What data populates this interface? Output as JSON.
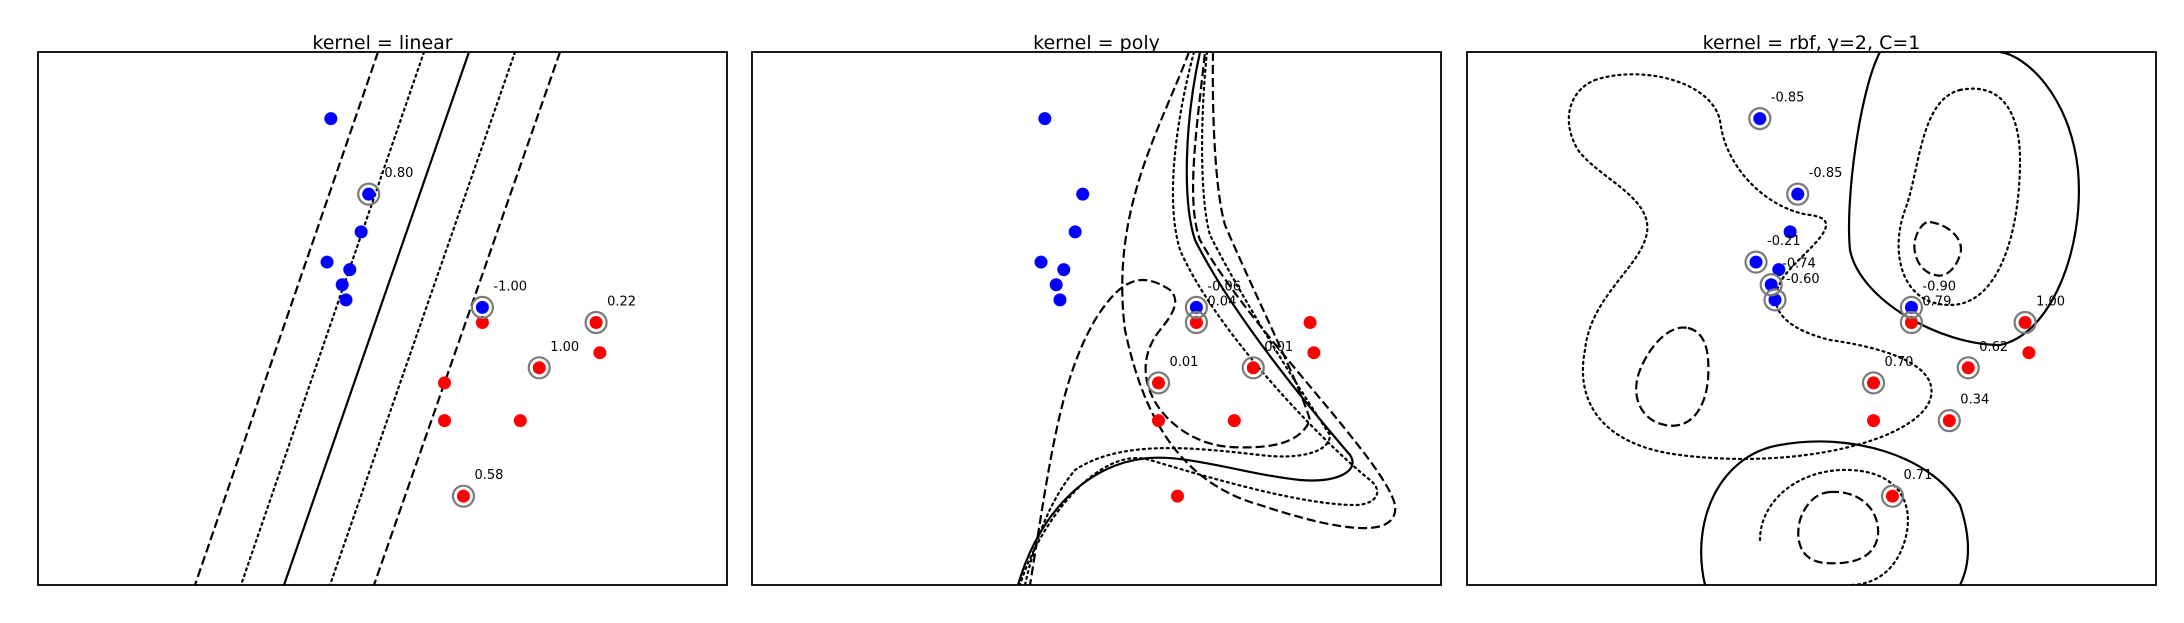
{
  "figure": {
    "colors": {
      "class_neg": "#0000ff",
      "class_pos": "#ff0000",
      "sv_ring": "#7a7a7a"
    }
  },
  "chart_data": [
    {
      "type": "scatter",
      "title": "kernel = linear",
      "xlabel": "",
      "ylabel": "",
      "grid": false,
      "decision_contours": [
        "solid boundary (f=0)",
        "dotted margins",
        "dashed margins"
      ],
      "points": [
        {
          "x": 3.0,
          "y": 0.5,
          "class": "neg"
        },
        {
          "x": 0.0,
          "y": 2.0,
          "class": "neg"
        },
        {
          "x": -0.2,
          "y": 1.5,
          "class": "neg"
        },
        {
          "x": -0.5,
          "y": 1.0,
          "class": "neg"
        },
        {
          "x": -0.6,
          "y": 0.6,
          "class": "neg"
        },
        {
          "x": -0.7,
          "y": 0.8,
          "class": "neg"
        },
        {
          "x": -1.0,
          "y": 3.0,
          "class": "neg"
        },
        {
          "x": -1.1,
          "y": 1.1,
          "class": "neg"
        },
        {
          "x": 6.0,
          "y": 0.3,
          "class": "pos"
        },
        {
          "x": 2.0,
          "y": -0.5,
          "class": "pos"
        },
        {
          "x": 3.0,
          "y": 0.3,
          "class": "pos"
        },
        {
          "x": 4.0,
          "y": -1.0,
          "class": "pos"
        },
        {
          "x": 4.5,
          "y": -0.3,
          "class": "pos"
        },
        {
          "x": 6.1,
          "y": -0.1,
          "class": "pos"
        },
        {
          "x": 2.0,
          "y": -1.0,
          "class": "pos"
        },
        {
          "x": 2.5,
          "y": -2.0,
          "class": "pos"
        }
      ],
      "support_vectors": [
        {
          "point": 1,
          "label": "-0.80"
        },
        {
          "point": 0,
          "label": "-1.00"
        },
        {
          "point": 12,
          "label": "1.00"
        },
        {
          "point": 8,
          "label": "0.22"
        },
        {
          "point": 15,
          "label": "0.58"
        }
      ]
    },
    {
      "type": "scatter",
      "title": "kernel = poly",
      "xlabel": "",
      "ylabel": "",
      "grid": false,
      "decision_contours": [
        "solid boundary (f=0)",
        "dotted margins",
        "dashed margins"
      ],
      "points": [
        {
          "x": 3.0,
          "y": 0.5,
          "class": "neg"
        },
        {
          "x": 0.0,
          "y": 2.0,
          "class": "neg"
        },
        {
          "x": -0.2,
          "y": 1.5,
          "class": "neg"
        },
        {
          "x": -0.5,
          "y": 1.0,
          "class": "neg"
        },
        {
          "x": -0.6,
          "y": 0.6,
          "class": "neg"
        },
        {
          "x": -0.7,
          "y": 0.8,
          "class": "neg"
        },
        {
          "x": -1.0,
          "y": 3.0,
          "class": "neg"
        },
        {
          "x": -1.1,
          "y": 1.1,
          "class": "neg"
        },
        {
          "x": 6.0,
          "y": 0.3,
          "class": "pos"
        },
        {
          "x": 2.0,
          "y": -0.5,
          "class": "pos"
        },
        {
          "x": 3.0,
          "y": 0.3,
          "class": "pos"
        },
        {
          "x": 4.0,
          "y": -1.0,
          "class": "pos"
        },
        {
          "x": 4.5,
          "y": -0.3,
          "class": "pos"
        },
        {
          "x": 6.1,
          "y": -0.1,
          "class": "pos"
        },
        {
          "x": 2.0,
          "y": -1.0,
          "class": "pos"
        },
        {
          "x": 2.5,
          "y": -2.0,
          "class": "pos"
        }
      ],
      "support_vectors": [
        {
          "point": 0,
          "label": "-0.06"
        },
        {
          "point": 12,
          "label": "0.01"
        },
        {
          "point": 10,
          "label": "0.04"
        },
        {
          "point": 9,
          "label": "0.01"
        }
      ]
    },
    {
      "type": "scatter",
      "title": "kernel = rbf, γ=2, C=1",
      "xlabel": "",
      "ylabel": "",
      "grid": false,
      "decision_contours": [
        "solid boundary (f=0)",
        "dotted margins",
        "dashed margins"
      ],
      "points": [
        {
          "x": 3.0,
          "y": 0.5,
          "class": "neg"
        },
        {
          "x": 0.0,
          "y": 2.0,
          "class": "neg"
        },
        {
          "x": -0.2,
          "y": 1.5,
          "class": "neg"
        },
        {
          "x": -0.5,
          "y": 1.0,
          "class": "neg"
        },
        {
          "x": -0.6,
          "y": 0.6,
          "class": "neg"
        },
        {
          "x": -0.7,
          "y": 0.8,
          "class": "neg"
        },
        {
          "x": -1.0,
          "y": 3.0,
          "class": "neg"
        },
        {
          "x": -1.1,
          "y": 1.1,
          "class": "neg"
        },
        {
          "x": 6.0,
          "y": 0.3,
          "class": "pos"
        },
        {
          "x": 2.0,
          "y": -0.5,
          "class": "pos"
        },
        {
          "x": 3.0,
          "y": 0.3,
          "class": "pos"
        },
        {
          "x": 4.0,
          "y": -1.0,
          "class": "pos"
        },
        {
          "x": 4.5,
          "y": -0.3,
          "class": "pos"
        },
        {
          "x": 6.1,
          "y": -0.1,
          "class": "pos"
        },
        {
          "x": 2.0,
          "y": -1.0,
          "class": "pos"
        },
        {
          "x": 2.5,
          "y": -2.0,
          "class": "pos"
        }
      ],
      "support_vectors": [
        {
          "point": 6,
          "label": "-0.85"
        },
        {
          "point": 1,
          "label": "-0.85"
        },
        {
          "point": 5,
          "label": "-0.74"
        },
        {
          "point": 0,
          "label": "-0.90"
        },
        {
          "point": 7,
          "label": "-0.21"
        },
        {
          "point": 4,
          "label": "-0.60"
        },
        {
          "point": 8,
          "label": "1.00"
        },
        {
          "point": 12,
          "label": "0.62"
        },
        {
          "point": 10,
          "label": "0.79"
        },
        {
          "point": 9,
          "label": "0.70"
        },
        {
          "point": 11,
          "label": "0.34"
        },
        {
          "point": 15,
          "label": "0.71"
        }
      ]
    }
  ]
}
